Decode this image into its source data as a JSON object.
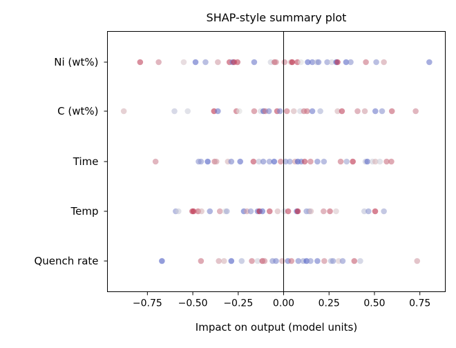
{
  "chart_data": {
    "type": "scatter",
    "title": "SHAP-style summary plot",
    "xlabel": "Impact on output (model units)",
    "ylabel": "",
    "xlim": [
      -0.97,
      0.89
    ],
    "xticks": [
      -0.75,
      -0.5,
      -0.25,
      0.0,
      0.25,
      0.5,
      0.75
    ],
    "xtick_labels": [
      "−0.75",
      "−0.50",
      "−0.25",
      "0.00",
      "0.25",
      "0.50",
      "0.75"
    ],
    "grid": false,
    "zero_line": 0.0,
    "colormap": {
      "low": "#3b4cc0",
      "mid": "#dddddd",
      "high": "#b40426"
    },
    "features": [
      {
        "name": "Ni (wt%)",
        "points": [
          [
            -0.79,
            0.85
          ],
          [
            -0.688,
            0.7
          ],
          [
            -0.55,
            0.55
          ],
          [
            -0.485,
            0.1
          ],
          [
            -0.43,
            0.25
          ],
          [
            -0.362,
            0.65
          ],
          [
            -0.298,
            0.85
          ],
          [
            -0.281,
            0.15
          ],
          [
            -0.273,
            0.9
          ],
          [
            -0.254,
            0.85
          ],
          [
            -0.162,
            0.15
          ],
          [
            -0.071,
            0.45
          ],
          [
            -0.05,
            0.8
          ],
          [
            -0.042,
            0.7
          ],
          [
            0.005,
            0.7
          ],
          [
            0.04,
            0.6
          ],
          [
            0.047,
            0.95
          ],
          [
            0.076,
            0.85
          ],
          [
            0.095,
            0.5
          ],
          [
            0.133,
            0.1
          ],
          [
            0.158,
            0.15
          ],
          [
            0.183,
            0.4
          ],
          [
            0.192,
            0.2
          ],
          [
            0.24,
            0.25
          ],
          [
            0.265,
            0.45
          ],
          [
            0.29,
            0.05
          ],
          [
            0.297,
            0.9
          ],
          [
            0.344,
            0.1
          ],
          [
            0.369,
            0.25
          ],
          [
            0.453,
            0.75
          ],
          [
            0.51,
            0.25
          ],
          [
            0.552,
            0.65
          ],
          [
            0.802,
            0.15
          ]
        ]
      },
      {
        "name": "C (wt%)",
        "points": [
          [
            -0.88,
            0.6
          ],
          [
            -0.601,
            0.4
          ],
          [
            -0.528,
            0.45
          ],
          [
            -0.383,
            0.9
          ],
          [
            -0.362,
            0.15
          ],
          [
            -0.26,
            0.8
          ],
          [
            -0.244,
            0.5
          ],
          [
            -0.162,
            0.75
          ],
          [
            -0.126,
            0.45
          ],
          [
            -0.111,
            0.05
          ],
          [
            -0.101,
            0.75
          ],
          [
            -0.081,
            0.2
          ],
          [
            -0.036,
            0.85
          ],
          [
            -0.02,
            0.2
          ],
          [
            0.018,
            0.75
          ],
          [
            0.056,
            0.6
          ],
          [
            0.091,
            0.45
          ],
          [
            0.112,
            0.75
          ],
          [
            0.129,
            0.75
          ],
          [
            0.158,
            0.15
          ],
          [
            0.202,
            0.35
          ],
          [
            0.297,
            0.6
          ],
          [
            0.321,
            0.85
          ],
          [
            0.407,
            0.7
          ],
          [
            0.447,
            0.65
          ],
          [
            0.505,
            0.15
          ],
          [
            0.542,
            0.25
          ],
          [
            0.596,
            0.8
          ],
          [
            0.727,
            0.7
          ]
        ]
      },
      {
        "name": "Time",
        "points": [
          [
            -0.705,
            0.7
          ],
          [
            -0.468,
            0.25
          ],
          [
            -0.455,
            0.25
          ],
          [
            -0.418,
            0.05
          ],
          [
            -0.38,
            0.75
          ],
          [
            -0.37,
            0.65
          ],
          [
            -0.307,
            0.6
          ],
          [
            -0.288,
            0.2
          ],
          [
            -0.239,
            0.1
          ],
          [
            -0.166,
            0.85
          ],
          [
            -0.136,
            0.4
          ],
          [
            -0.112,
            0.2
          ],
          [
            -0.078,
            0.25
          ],
          [
            -0.052,
            0.05
          ],
          [
            -0.016,
            0.75
          ],
          [
            0.011,
            0.25
          ],
          [
            0.034,
            0.25
          ],
          [
            0.063,
            0.65
          ],
          [
            0.078,
            0.05
          ],
          [
            0.097,
            0.15
          ],
          [
            0.116,
            0.85
          ],
          [
            0.148,
            0.75
          ],
          [
            0.186,
            0.2
          ],
          [
            0.222,
            0.25
          ],
          [
            0.314,
            0.75
          ],
          [
            0.347,
            0.3
          ],
          [
            0.381,
            0.9
          ],
          [
            0.451,
            0.4
          ],
          [
            0.461,
            0.1
          ],
          [
            0.489,
            0.45
          ],
          [
            0.505,
            0.6
          ],
          [
            0.53,
            0.45
          ],
          [
            0.567,
            0.75
          ],
          [
            0.593,
            0.75
          ]
        ]
      },
      {
        "name": "Temp",
        "points": [
          [
            -0.594,
            0.25
          ],
          [
            -0.579,
            0.45
          ],
          [
            -0.503,
            0.85
          ],
          [
            -0.496,
            0.9
          ],
          [
            -0.471,
            0.8
          ],
          [
            -0.452,
            0.6
          ],
          [
            -0.406,
            0.2
          ],
          [
            -0.351,
            0.7
          ],
          [
            -0.322,
            0.5
          ],
          [
            -0.313,
            0.3
          ],
          [
            -0.219,
            0.1
          ],
          [
            -0.202,
            0.65
          ],
          [
            -0.181,
            0.25
          ],
          [
            -0.143,
            0.15
          ],
          [
            -0.133,
            0.95
          ],
          [
            -0.117,
            0.1
          ],
          [
            -0.077,
            0.85
          ],
          [
            -0.033,
            0.6
          ],
          [
            0.003,
            0.45
          ],
          [
            0.025,
            0.85
          ],
          [
            0.072,
            0.15
          ],
          [
            0.078,
            0.95
          ],
          [
            0.126,
            0.25
          ],
          [
            0.141,
            0.3
          ],
          [
            0.15,
            0.6
          ],
          [
            0.22,
            0.7
          ],
          [
            0.255,
            0.8
          ],
          [
            0.289,
            0.55
          ],
          [
            0.444,
            0.4
          ],
          [
            0.467,
            0.25
          ],
          [
            0.504,
            0.9
          ],
          [
            0.552,
            0.3
          ]
        ]
      },
      {
        "name": "Quench rate",
        "points": [
          [
            -0.67,
            0.05
          ],
          [
            -0.455,
            0.75
          ],
          [
            -0.357,
            0.65
          ],
          [
            -0.328,
            0.6
          ],
          [
            -0.288,
            0.05
          ],
          [
            -0.231,
            0.35
          ],
          [
            -0.175,
            0.75
          ],
          [
            -0.143,
            0.45
          ],
          [
            -0.117,
            0.85
          ],
          [
            -0.105,
            0.7
          ],
          [
            -0.061,
            0.25
          ],
          [
            -0.042,
            0.2
          ],
          [
            -0.008,
            0.65
          ],
          [
            0.024,
            0.15
          ],
          [
            0.043,
            0.75
          ],
          [
            0.081,
            0.2
          ],
          [
            0.108,
            0.3
          ],
          [
            0.126,
            0.05
          ],
          [
            0.148,
            0.25
          ],
          [
            0.186,
            0.15
          ],
          [
            0.224,
            0.7
          ],
          [
            0.261,
            0.35
          ],
          [
            0.272,
            0.25
          ],
          [
            0.303,
            0.55
          ],
          [
            0.325,
            0.25
          ],
          [
            0.389,
            0.8
          ],
          [
            0.422,
            0.4
          ],
          [
            0.735,
            0.65
          ]
        ]
      }
    ]
  }
}
